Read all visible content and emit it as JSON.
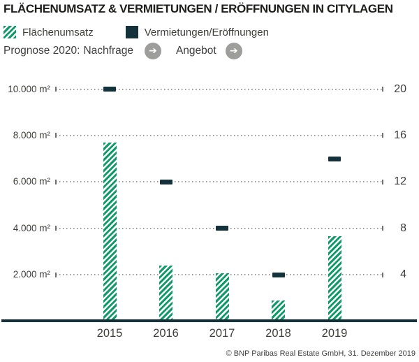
{
  "title": "FLÄCHENUMSATZ & VERMIETUNGEN / ERÖFFNUNGEN IN CITYLAGEN",
  "forecast": {
    "prefix": "Prognose 2020:",
    "demand_label": "Nachfrage",
    "supply_label": "Angebot",
    "arrow_glyph": "➔",
    "demand_trend": "right",
    "supply_trend": "right"
  },
  "footer": {
    "copyright": "© BNP Paribas Real Estate GmbH, 31. Dezember 2019"
  },
  "colors": {
    "green": "#0f9b68",
    "dark": "#14323c",
    "text": "#3d3d3b",
    "title_text": "#1d1d1b",
    "grid": "#9a9a9a",
    "tick": "#6f6f6f",
    "arrow_circle": "#9d9d9c"
  },
  "chart_data": {
    "type": "bar",
    "title": "FLÄCHENUMSATZ & VERMIETUNGEN / ERÖFFNUNGEN IN CITYLAGEN",
    "categories": [
      "2015",
      "2016",
      "2017",
      "2018",
      "2019"
    ],
    "series": [
      {
        "name": "Flächenumsatz",
        "type": "bar",
        "axis": "left",
        "unit": "m²",
        "style": "green-hatched",
        "values": [
          7700,
          2400,
          2050,
          900,
          3650
        ]
      },
      {
        "name": "Vermietungen/Eröffnungen",
        "type": "dash-marker",
        "axis": "right",
        "unit": "Anzahl",
        "style": "dark-dash",
        "values": [
          20,
          12,
          8,
          4,
          14
        ]
      }
    ],
    "left_axis": {
      "ticks": [
        {
          "label": "2.000 m²",
          "value": 2000
        },
        {
          "label": "4.000 m²",
          "value": 4000
        },
        {
          "label": "6.000 m²",
          "value": 6000
        },
        {
          "label": "8.000 m²",
          "value": 8000
        },
        {
          "label": "10.000 m²",
          "value": 10000
        }
      ],
      "range": [
        0,
        10500
      ]
    },
    "right_axis": {
      "ticks": [
        {
          "label": "4",
          "value": 4
        },
        {
          "label": "8",
          "value": 8
        },
        {
          "label": "12",
          "value": 12
        },
        {
          "label": "16",
          "value": 16
        },
        {
          "label": "20",
          "value": 20
        }
      ],
      "range": [
        0,
        21
      ]
    },
    "grid": "dotted-horizontal",
    "legend_position": "top-left"
  }
}
